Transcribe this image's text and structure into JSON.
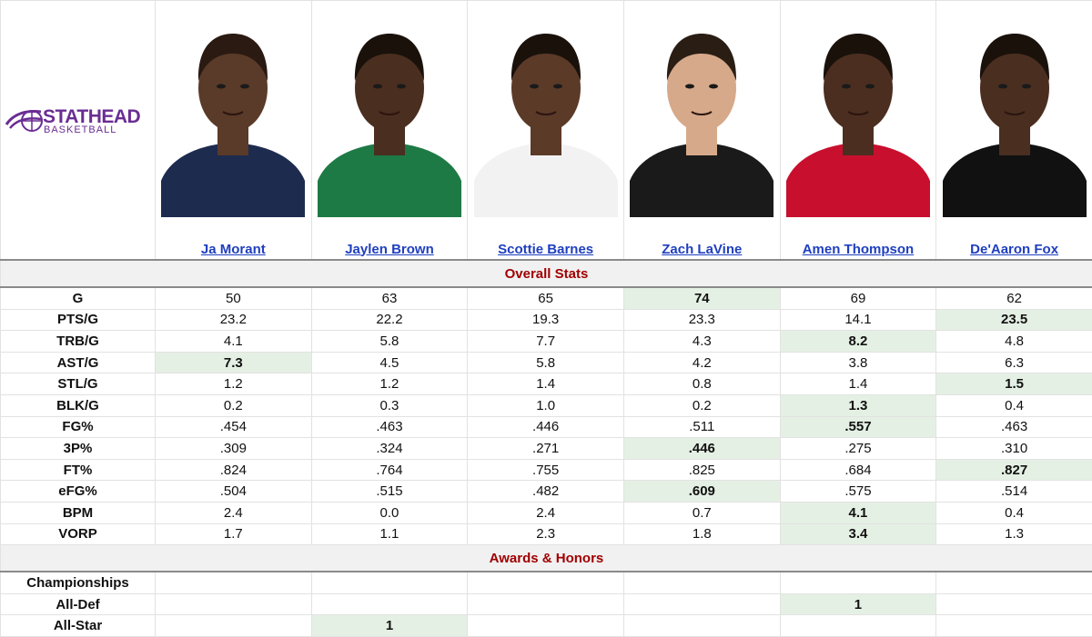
{
  "logo": {
    "line1": "STATHEAD",
    "line2": "BASKETBALL",
    "color": "#6a2d93"
  },
  "players": [
    {
      "name": "Ja Morant",
      "jersey_color": "#1d2b4f",
      "skin": "#5a3a28",
      "hair": "#2a1a12"
    },
    {
      "name": "Jaylen Brown",
      "jersey_color": "#1e7a45",
      "skin": "#4a2e1f",
      "hair": "#1a110b"
    },
    {
      "name": "Scottie Barnes",
      "jersey_color": "#f2f2f2",
      "skin": "#5b3a28",
      "hair": "#1a110b"
    },
    {
      "name": "Zach LaVine",
      "jersey_color": "#1a1a1a",
      "skin": "#d6a98a",
      "hair": "#2a1d14"
    },
    {
      "name": "Amen Thompson",
      "jersey_color": "#c8102e",
      "skin": "#4b2e20",
      "hair": "#1a110b"
    },
    {
      "name": "De'Aaron Fox",
      "jersey_color": "#111111",
      "skin": "#4a2e20",
      "hair": "#1a110b"
    }
  ],
  "sections": {
    "overall": "Overall Stats",
    "awards": "Awards & Honors"
  },
  "stats": [
    {
      "label": "G",
      "values": [
        "50",
        "63",
        "65",
        "74",
        "69",
        "62"
      ],
      "best": 3
    },
    {
      "label": "PTS/G",
      "values": [
        "23.2",
        "22.2",
        "19.3",
        "23.3",
        "14.1",
        "23.5"
      ],
      "best": 5
    },
    {
      "label": "TRB/G",
      "values": [
        "4.1",
        "5.8",
        "7.7",
        "4.3",
        "8.2",
        "4.8"
      ],
      "best": 4
    },
    {
      "label": "AST/G",
      "values": [
        "7.3",
        "4.5",
        "5.8",
        "4.2",
        "3.8",
        "6.3"
      ],
      "best": 0
    },
    {
      "label": "STL/G",
      "values": [
        "1.2",
        "1.2",
        "1.4",
        "0.8",
        "1.4",
        "1.5"
      ],
      "best": 5
    },
    {
      "label": "BLK/G",
      "values": [
        "0.2",
        "0.3",
        "1.0",
        "0.2",
        "1.3",
        "0.4"
      ],
      "best": 4
    },
    {
      "label": "FG%",
      "values": [
        ".454",
        ".463",
        ".446",
        ".511",
        ".557",
        ".463"
      ],
      "best": 4
    },
    {
      "label": "3P%",
      "values": [
        ".309",
        ".324",
        ".271",
        ".446",
        ".275",
        ".310"
      ],
      "best": 3
    },
    {
      "label": "FT%",
      "values": [
        ".824",
        ".764",
        ".755",
        ".825",
        ".684",
        ".827"
      ],
      "best": 5
    },
    {
      "label": "eFG%",
      "values": [
        ".504",
        ".515",
        ".482",
        ".609",
        ".575",
        ".514"
      ],
      "best": 3
    },
    {
      "label": "BPM",
      "values": [
        "2.4",
        "0.0",
        "2.4",
        "0.7",
        "4.1",
        "0.4"
      ],
      "best": 4
    },
    {
      "label": "VORP",
      "values": [
        "1.7",
        "1.1",
        "2.3",
        "1.8",
        "3.4",
        "1.3"
      ],
      "best": 4
    }
  ],
  "awards": [
    {
      "label": "Championships",
      "values": [
        "",
        "",
        "",
        "",
        "",
        ""
      ],
      "best": -1
    },
    {
      "label": "All-Def",
      "values": [
        "",
        "",
        "",
        "",
        "1",
        ""
      ],
      "best": 4
    },
    {
      "label": "All-Star",
      "values": [
        "",
        "1",
        "",
        "",
        "",
        ""
      ],
      "best": 1
    }
  ],
  "highlight_color": "#e5f0e4",
  "section_color": "#a00000",
  "link_color": "#1f3fbf"
}
